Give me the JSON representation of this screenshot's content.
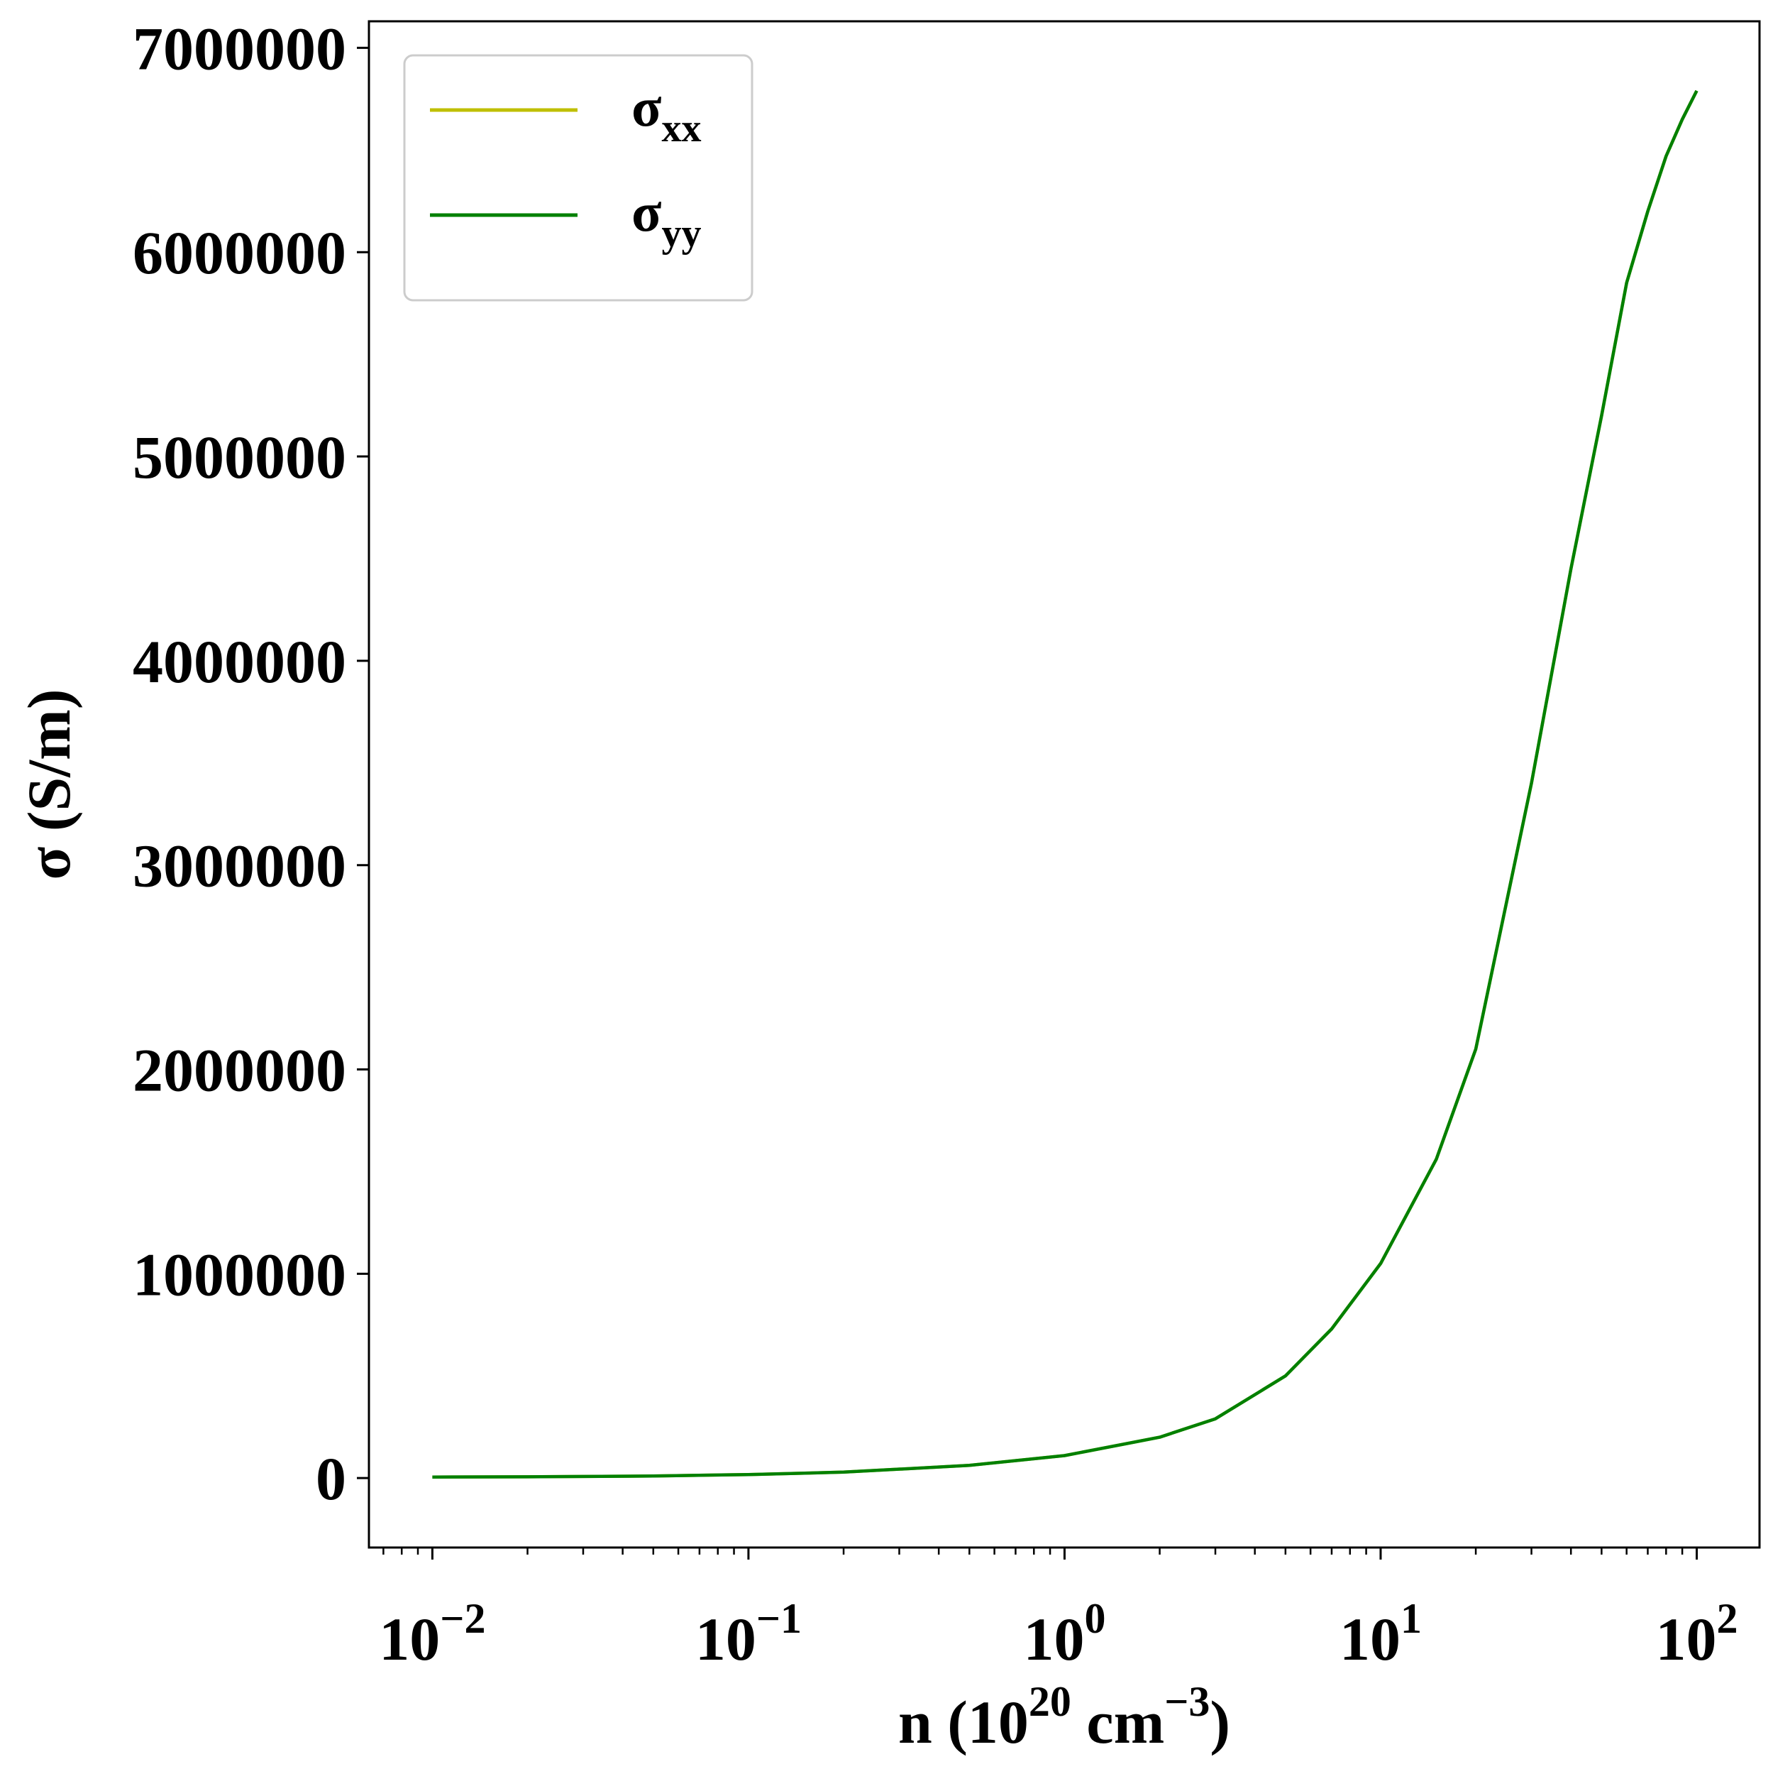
{
  "chart_data": {
    "type": "line",
    "xlabel": "n (10^20 cm^-3)",
    "xlabel_parts": {
      "prefix": "n (10",
      "sup1": "20",
      "mid": " cm",
      "sup2": "−3",
      "suffix": ")"
    },
    "ylabel": "σ (S/m)",
    "xscale": "log",
    "xlim": [
      0.0063,
      158
    ],
    "ylim": [
      -340000,
      7130000
    ],
    "grid": false,
    "legend_position": "top-left",
    "x_ticks": [
      {
        "value": 0.01,
        "base": "10",
        "exp": "−2"
      },
      {
        "value": 0.1,
        "base": "10",
        "exp": "−1"
      },
      {
        "value": 1,
        "base": "10",
        "exp": "0"
      },
      {
        "value": 10,
        "base": "10",
        "exp": "1"
      },
      {
        "value": 100,
        "base": "10",
        "exp": "2"
      }
    ],
    "y_ticks": [
      {
        "value": 0,
        "label": "0"
      },
      {
        "value": 1000000,
        "label": "1000000"
      },
      {
        "value": 2000000,
        "label": "2000000"
      },
      {
        "value": 3000000,
        "label": "3000000"
      },
      {
        "value": 4000000,
        "label": "4000000"
      },
      {
        "value": 5000000,
        "label": "5000000"
      },
      {
        "value": 6000000,
        "label": "6000000"
      },
      {
        "value": 7000000,
        "label": "7000000"
      }
    ],
    "x": [
      0.01,
      0.02,
      0.05,
      0.1,
      0.2,
      0.5,
      1,
      2,
      3,
      5,
      7,
      10,
      15,
      20,
      30,
      40,
      50,
      60,
      70,
      80,
      90,
      100
    ],
    "series": [
      {
        "name": "σxx",
        "label_main": "σ",
        "label_sub": "xx",
        "color": "#bfbf00",
        "values": [
          5000,
          6000,
          10000,
          17000,
          29000,
          62000,
          110000,
          200000,
          290000,
          500000,
          730000,
          1050000,
          1560000,
          2100000,
          3400000,
          4450000,
          5200000,
          5850000,
          6200000,
          6470000,
          6650000,
          6790000
        ]
      },
      {
        "name": "σyy",
        "label_main": "σ",
        "label_sub": "yy",
        "color": "#008000",
        "values": [
          5000,
          6000,
          10000,
          17000,
          29000,
          62000,
          110000,
          200000,
          290000,
          500000,
          730000,
          1050000,
          1560000,
          2100000,
          3400000,
          4450000,
          5200000,
          5850000,
          6200000,
          6470000,
          6650000,
          6790000
        ]
      }
    ]
  }
}
